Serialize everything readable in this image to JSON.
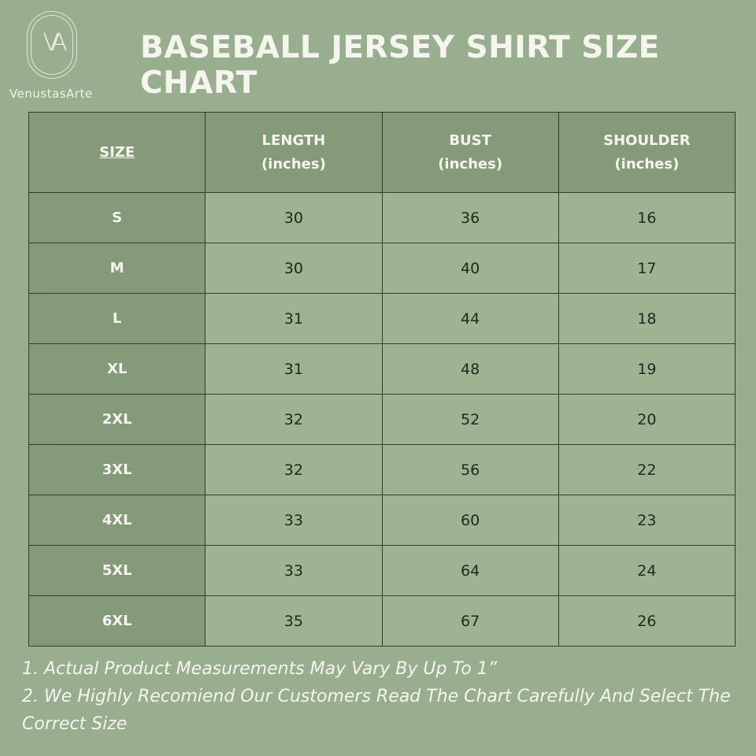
{
  "brand": {
    "logo_text": "VA",
    "name": "VenustasArte"
  },
  "title": "BASEBALL JERSEY SHIRT SIZE CHART",
  "table": {
    "headers": [
      {
        "label": "SIZE",
        "unit": ""
      },
      {
        "label": "LENGTH",
        "unit": "(inches)"
      },
      {
        "label": "BUST",
        "unit": "(inches)"
      },
      {
        "label": "SHOULDER",
        "unit": "(inches)"
      }
    ],
    "rows": [
      [
        "S",
        "30",
        "36",
        "16"
      ],
      [
        "M",
        "30",
        "40",
        "17"
      ],
      [
        "L",
        "31",
        "44",
        "18"
      ],
      [
        "XL",
        "31",
        "48",
        "19"
      ],
      [
        "2XL",
        "32",
        "52",
        "20"
      ],
      [
        "3XL",
        "32",
        "56",
        "22"
      ],
      [
        "4XL",
        "33",
        "60",
        "23"
      ],
      [
        "5XL",
        "33",
        "64",
        "24"
      ],
      [
        "6XL",
        "35",
        "67",
        "26"
      ]
    ]
  },
  "notes": [
    "1. Actual Product Measurements May Vary By Up To 1”",
    "2. We Highly Recomiend Our Customers Read The Chart Carefully And Select The Correct Size"
  ],
  "colors": {
    "background": "#98ae8e",
    "header": "#849a78",
    "cell": "#9db392",
    "border": "#2f4129"
  }
}
